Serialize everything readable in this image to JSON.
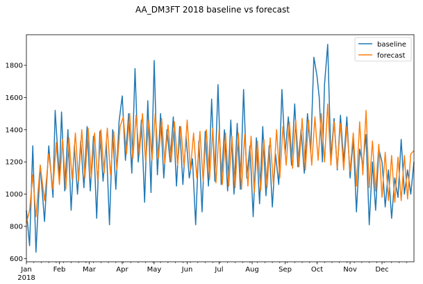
{
  "chart_data": {
    "type": "line",
    "title": "AA_DM3FT 2018 baseline vs forecast",
    "xlabel": "",
    "ylabel": "",
    "year_label": "2018",
    "x_range": [
      "2018-01-01",
      "2018-12-31"
    ],
    "ylim": [
      580,
      1990
    ],
    "grid": false,
    "legend_position": "top-right",
    "x_ticks": [
      {
        "label": "Jan",
        "date": "2018-01-01"
      },
      {
        "label": "Feb",
        "date": "2018-02-01"
      },
      {
        "label": "Mar",
        "date": "2018-03-01"
      },
      {
        "label": "Apr",
        "date": "2018-04-01"
      },
      {
        "label": "May",
        "date": "2018-05-01"
      },
      {
        "label": "Jun",
        "date": "2018-06-01"
      },
      {
        "label": "Jul",
        "date": "2018-07-01"
      },
      {
        "label": "Aug",
        "date": "2018-08-01"
      },
      {
        "label": "Sep",
        "date": "2018-09-01"
      },
      {
        "label": "Oct",
        "date": "2018-10-01"
      },
      {
        "label": "Nov",
        "date": "2018-11-01"
      },
      {
        "label": "Dec",
        "date": "2018-12-01"
      }
    ],
    "y_ticks": [
      600,
      800,
      1000,
      1200,
      1400,
      1600,
      1800
    ],
    "series": [
      {
        "name": "baseline",
        "color": "#1f77b4",
        "points": [
          [
            "2018-01-01",
            900
          ],
          [
            "2018-01-04",
            680
          ],
          [
            "2018-01-07",
            1300
          ],
          [
            "2018-01-10",
            640
          ],
          [
            "2018-01-14",
            1180
          ],
          [
            "2018-01-18",
            830
          ],
          [
            "2018-01-22",
            1300
          ],
          [
            "2018-01-26",
            980
          ],
          [
            "2018-01-28",
            1520
          ],
          [
            "2018-02-01",
            1100
          ],
          [
            "2018-02-03",
            1510
          ],
          [
            "2018-02-06",
            1020
          ],
          [
            "2018-02-09",
            1400
          ],
          [
            "2018-02-12",
            900
          ],
          [
            "2018-02-15",
            1300
          ],
          [
            "2018-02-18",
            1000
          ],
          [
            "2018-02-21",
            1330
          ],
          [
            "2018-02-24",
            1040
          ],
          [
            "2018-02-27",
            1420
          ],
          [
            "2018-03-02",
            1020
          ],
          [
            "2018-03-05",
            1360
          ],
          [
            "2018-03-08",
            850
          ],
          [
            "2018-03-11",
            1390
          ],
          [
            "2018-03-14",
            1080
          ],
          [
            "2018-03-17",
            1320
          ],
          [
            "2018-03-20",
            810
          ],
          [
            "2018-03-23",
            1400
          ],
          [
            "2018-03-26",
            1030
          ],
          [
            "2018-03-29",
            1450
          ],
          [
            "2018-04-01",
            1610
          ],
          [
            "2018-04-04",
            1210
          ],
          [
            "2018-04-07",
            1500
          ],
          [
            "2018-04-10",
            1130
          ],
          [
            "2018-04-13",
            1780
          ],
          [
            "2018-04-16",
            1200
          ],
          [
            "2018-04-19",
            1460
          ],
          [
            "2018-04-22",
            950
          ],
          [
            "2018-04-25",
            1580
          ],
          [
            "2018-04-28",
            1010
          ],
          [
            "2018-05-01",
            1830
          ],
          [
            "2018-05-04",
            1120
          ],
          [
            "2018-05-07",
            1500
          ],
          [
            "2018-05-10",
            1100
          ],
          [
            "2018-05-13",
            1400
          ],
          [
            "2018-05-16",
            1200
          ],
          [
            "2018-05-19",
            1480
          ],
          [
            "2018-05-22",
            1050
          ],
          [
            "2018-05-25",
            1420
          ],
          [
            "2018-05-28",
            1060
          ],
          [
            "2018-05-31",
            1360
          ],
          [
            "2018-06-03",
            1100
          ],
          [
            "2018-06-06",
            1220
          ],
          [
            "2018-06-09",
            810
          ],
          [
            "2018-06-12",
            1330
          ],
          [
            "2018-06-15",
            890
          ],
          [
            "2018-06-18",
            1390
          ],
          [
            "2018-06-21",
            1050
          ],
          [
            "2018-06-24",
            1590
          ],
          [
            "2018-06-27",
            1080
          ],
          [
            "2018-06-30",
            1680
          ],
          [
            "2018-07-03",
            1060
          ],
          [
            "2018-07-06",
            1400
          ],
          [
            "2018-07-09",
            1020
          ],
          [
            "2018-07-12",
            1460
          ],
          [
            "2018-07-15",
            1000
          ],
          [
            "2018-07-18",
            1440
          ],
          [
            "2018-07-21",
            1030
          ],
          [
            "2018-07-24",
            1650
          ],
          [
            "2018-07-27",
            1100
          ],
          [
            "2018-07-30",
            1300
          ],
          [
            "2018-08-02",
            860
          ],
          [
            "2018-08-05",
            1350
          ],
          [
            "2018-08-08",
            940
          ],
          [
            "2018-08-11",
            1420
          ],
          [
            "2018-08-14",
            990
          ],
          [
            "2018-08-17",
            1300
          ],
          [
            "2018-08-20",
            920
          ],
          [
            "2018-08-23",
            1250
          ],
          [
            "2018-08-26",
            1060
          ],
          [
            "2018-08-29",
            1650
          ],
          [
            "2018-09-01",
            1250
          ],
          [
            "2018-09-04",
            1480
          ],
          [
            "2018-09-07",
            1180
          ],
          [
            "2018-09-10",
            1560
          ],
          [
            "2018-09-13",
            1170
          ],
          [
            "2018-09-16",
            1400
          ],
          [
            "2018-09-19",
            1130
          ],
          [
            "2018-09-22",
            1500
          ],
          [
            "2018-09-25",
            1260
          ],
          [
            "2018-09-28",
            1850
          ],
          [
            "2018-10-01",
            1730
          ],
          [
            "2018-10-03",
            1600
          ],
          [
            "2018-10-06",
            1200
          ],
          [
            "2018-10-08",
            1680
          ],
          [
            "2018-10-11",
            1930
          ],
          [
            "2018-10-14",
            1220
          ],
          [
            "2018-10-17",
            1470
          ],
          [
            "2018-10-20",
            1150
          ],
          [
            "2018-10-23",
            1490
          ],
          [
            "2018-10-26",
            1200
          ],
          [
            "2018-10-29",
            1480
          ],
          [
            "2018-11-01",
            1100
          ],
          [
            "2018-11-04",
            1340
          ],
          [
            "2018-11-07",
            890
          ],
          [
            "2018-11-10",
            1280
          ],
          [
            "2018-11-13",
            1180
          ],
          [
            "2018-11-16",
            1370
          ],
          [
            "2018-11-19",
            810
          ],
          [
            "2018-11-22",
            1200
          ],
          [
            "2018-11-25",
            900
          ],
          [
            "2018-11-28",
            1280
          ],
          [
            "2018-12-01",
            1200
          ],
          [
            "2018-12-04",
            920
          ],
          [
            "2018-12-07",
            1150
          ],
          [
            "2018-12-10",
            850
          ],
          [
            "2018-12-13",
            1100
          ],
          [
            "2018-12-16",
            980
          ],
          [
            "2018-12-19",
            1340
          ],
          [
            "2018-12-22",
            1000
          ],
          [
            "2018-12-25",
            1150
          ],
          [
            "2018-12-28",
            1000
          ],
          [
            "2018-12-31",
            1200
          ]
        ]
      },
      {
        "name": "forecast",
        "color": "#ff7f0e",
        "points": [
          [
            "2018-01-01",
            820
          ],
          [
            "2018-01-04",
            900
          ],
          [
            "2018-01-07",
            1120
          ],
          [
            "2018-01-10",
            860
          ],
          [
            "2018-01-14",
            1180
          ],
          [
            "2018-01-18",
            960
          ],
          [
            "2018-01-22",
            1250
          ],
          [
            "2018-01-26",
            1030
          ],
          [
            "2018-01-29",
            1320
          ],
          [
            "2018-02-01",
            1060
          ],
          [
            "2018-02-04",
            1340
          ],
          [
            "2018-02-07",
            1030
          ],
          [
            "2018-02-10",
            1350
          ],
          [
            "2018-02-13",
            1090
          ],
          [
            "2018-02-16",
            1380
          ],
          [
            "2018-02-19",
            1080
          ],
          [
            "2018-02-22",
            1400
          ],
          [
            "2018-02-25",
            1100
          ],
          [
            "2018-02-28",
            1410
          ],
          [
            "2018-03-03",
            1100
          ],
          [
            "2018-03-06",
            1380
          ],
          [
            "2018-03-09",
            1080
          ],
          [
            "2018-03-12",
            1400
          ],
          [
            "2018-03-15",
            1130
          ],
          [
            "2018-03-18",
            1410
          ],
          [
            "2018-03-21",
            1120
          ],
          [
            "2018-03-24",
            1390
          ],
          [
            "2018-03-27",
            1150
          ],
          [
            "2018-03-30",
            1420
          ],
          [
            "2018-04-02",
            1480
          ],
          [
            "2018-04-05",
            1250
          ],
          [
            "2018-04-08",
            1500
          ],
          [
            "2018-04-11",
            1220
          ],
          [
            "2018-04-14",
            1490
          ],
          [
            "2018-04-17",
            1240
          ],
          [
            "2018-04-20",
            1500
          ],
          [
            "2018-04-23",
            1200
          ],
          [
            "2018-04-26",
            1460
          ],
          [
            "2018-04-29",
            1210
          ],
          [
            "2018-05-02",
            1500
          ],
          [
            "2018-05-05",
            1220
          ],
          [
            "2018-05-08",
            1470
          ],
          [
            "2018-05-11",
            1190
          ],
          [
            "2018-05-14",
            1430
          ],
          [
            "2018-05-17",
            1200
          ],
          [
            "2018-05-20",
            1450
          ],
          [
            "2018-05-23",
            1180
          ],
          [
            "2018-05-26",
            1420
          ],
          [
            "2018-05-29",
            1170
          ],
          [
            "2018-06-01",
            1460
          ],
          [
            "2018-06-04",
            1150
          ],
          [
            "2018-06-07",
            1380
          ],
          [
            "2018-06-10",
            1100
          ],
          [
            "2018-06-13",
            1390
          ],
          [
            "2018-06-16",
            1080
          ],
          [
            "2018-06-19",
            1400
          ],
          [
            "2018-06-22",
            1090
          ],
          [
            "2018-06-25",
            1410
          ],
          [
            "2018-06-28",
            1070
          ],
          [
            "2018-07-01",
            1400
          ],
          [
            "2018-07-04",
            1060
          ],
          [
            "2018-07-07",
            1380
          ],
          [
            "2018-07-10",
            1050
          ],
          [
            "2018-07-13",
            1360
          ],
          [
            "2018-07-16",
            1040
          ],
          [
            "2018-07-19",
            1380
          ],
          [
            "2018-07-22",
            1030
          ],
          [
            "2018-07-25",
            1370
          ],
          [
            "2018-07-28",
            1050
          ],
          [
            "2018-07-31",
            1360
          ],
          [
            "2018-08-03",
            1010
          ],
          [
            "2018-08-06",
            1330
          ],
          [
            "2018-08-09",
            1020
          ],
          [
            "2018-08-12",
            1340
          ],
          [
            "2018-08-15",
            1040
          ],
          [
            "2018-08-18",
            1350
          ],
          [
            "2018-08-21",
            1060
          ],
          [
            "2018-08-24",
            1400
          ],
          [
            "2018-08-27",
            1100
          ],
          [
            "2018-08-30",
            1420
          ],
          [
            "2018-09-02",
            1180
          ],
          [
            "2018-09-05",
            1450
          ],
          [
            "2018-09-08",
            1160
          ],
          [
            "2018-09-11",
            1460
          ],
          [
            "2018-09-14",
            1170
          ],
          [
            "2018-09-17",
            1470
          ],
          [
            "2018-09-20",
            1150
          ],
          [
            "2018-09-23",
            1460
          ],
          [
            "2018-09-26",
            1180
          ],
          [
            "2018-09-29",
            1480
          ],
          [
            "2018-10-02",
            1210
          ],
          [
            "2018-10-05",
            1500
          ],
          [
            "2018-10-08",
            1200
          ],
          [
            "2018-10-11",
            1560
          ],
          [
            "2018-10-14",
            1180
          ],
          [
            "2018-10-17",
            1450
          ],
          [
            "2018-10-20",
            1160
          ],
          [
            "2018-10-23",
            1440
          ],
          [
            "2018-10-26",
            1150
          ],
          [
            "2018-10-29",
            1420
          ],
          [
            "2018-11-01",
            1140
          ],
          [
            "2018-11-04",
            1380
          ],
          [
            "2018-11-07",
            1050
          ],
          [
            "2018-11-10",
            1450
          ],
          [
            "2018-11-13",
            1120
          ],
          [
            "2018-11-16",
            1520
          ],
          [
            "2018-11-19",
            1040
          ],
          [
            "2018-11-22",
            1330
          ],
          [
            "2018-11-25",
            1020
          ],
          [
            "2018-11-28",
            1310
          ],
          [
            "2018-12-01",
            980
          ],
          [
            "2018-12-04",
            1260
          ],
          [
            "2018-12-07",
            960
          ],
          [
            "2018-12-10",
            1240
          ],
          [
            "2018-12-13",
            950
          ],
          [
            "2018-12-16",
            1230
          ],
          [
            "2018-12-19",
            960
          ],
          [
            "2018-12-22",
            1240
          ],
          [
            "2018-12-25",
            970
          ],
          [
            "2018-12-28",
            1250
          ],
          [
            "2018-12-31",
            1270
          ]
        ]
      }
    ]
  }
}
